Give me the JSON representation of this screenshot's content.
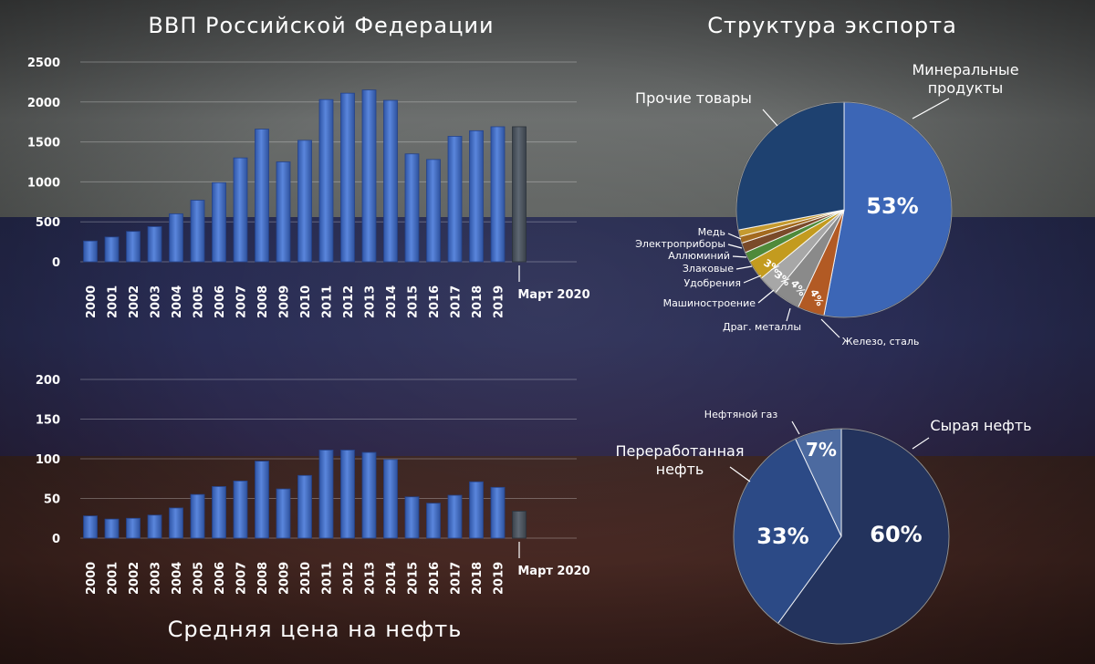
{
  "colors": {
    "bar": "#3f69c1",
    "bar_highlight": "#5a86dc",
    "bar_last": "#4b535e",
    "mineral": "#3c66b6",
    "other_goods": "#1e4170",
    "crude": "#23335d",
    "refined": "#2c4a86",
    "gas": "#4c6aa0"
  },
  "chart_data": [
    {
      "type": "bar",
      "title": "ВВП Российской Федерации",
      "categories": [
        "2000",
        "2001",
        "2002",
        "2003",
        "2004",
        "2005",
        "2006",
        "2007",
        "2008",
        "2009",
        "2010",
        "2011",
        "2012",
        "2013",
        "2014",
        "2015",
        "2016",
        "2017",
        "2018",
        "2019",
        "Март 2020"
      ],
      "values": [
        260,
        310,
        380,
        440,
        600,
        770,
        990,
        1300,
        1660,
        1250,
        1520,
        2030,
        2110,
        2150,
        2020,
        1350,
        1280,
        1570,
        1640,
        1690,
        1690
      ],
      "yticks": [
        0,
        500,
        1000,
        1500,
        2000,
        2500
      ],
      "ylim": [
        0,
        2500
      ],
      "grid": true
    },
    {
      "type": "bar",
      "title": "Средняя цена на нефть",
      "categories": [
        "2000",
        "2001",
        "2002",
        "2003",
        "2004",
        "2005",
        "2006",
        "2007",
        "2008",
        "2009",
        "2010",
        "2011",
        "2012",
        "2013",
        "2014",
        "2015",
        "2016",
        "2017",
        "2018",
        "2019",
        "Март 2020"
      ],
      "values": [
        28,
        24,
        25,
        29,
        38,
        55,
        65,
        72,
        97,
        62,
        79,
        111,
        111,
        108,
        99,
        52,
        44,
        54,
        71,
        64,
        34
      ],
      "yticks": [
        0,
        50,
        100,
        150,
        200
      ],
      "ylim": [
        0,
        200
      ],
      "grid": true
    },
    {
      "type": "pie",
      "title": "Структура экспорта",
      "slices": [
        {
          "name": "Минеральные продукты",
          "value": 53,
          "label": "53%"
        },
        {
          "name": "Железо, сталь",
          "value": 4,
          "label": "4%"
        },
        {
          "name": "Драг. металлы",
          "value": 4,
          "label": "4%"
        },
        {
          "name": "Машиностроение",
          "value": 3,
          "label": "3%"
        },
        {
          "name": "Удобрения",
          "value": 3,
          "label": "3%"
        },
        {
          "name": "Злаковые",
          "value": 1.5,
          "label": ""
        },
        {
          "name": "Аллюминий",
          "value": 1.5,
          "label": ""
        },
        {
          "name": "Электроприборы",
          "value": 1,
          "label": ""
        },
        {
          "name": "Медь",
          "value": 1,
          "label": ""
        },
        {
          "name": "Прочие товары",
          "value": 28,
          "label": ""
        }
      ]
    },
    {
      "type": "pie",
      "slices": [
        {
          "name": "Сырая нефть",
          "value": 60,
          "label": "60%"
        },
        {
          "name": "Переработанная нефть",
          "value": 33,
          "label": "33%"
        },
        {
          "name": "Нефтяной газ",
          "value": 7,
          "label": "7%"
        }
      ]
    }
  ]
}
